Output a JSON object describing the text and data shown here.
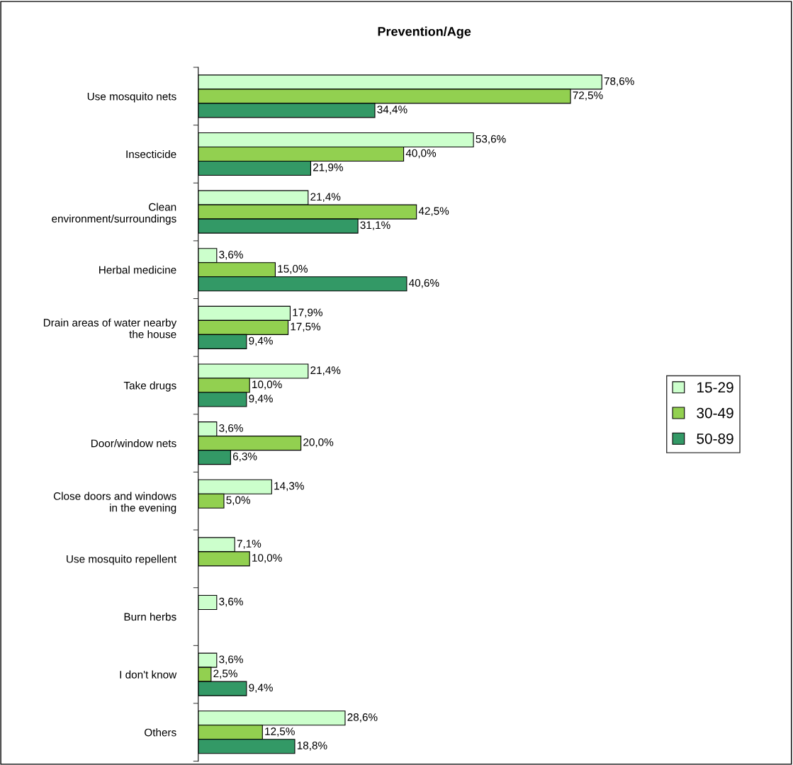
{
  "chart_data": {
    "type": "bar",
    "orientation": "horizontal",
    "title": "Prevention/Age",
    "categories": [
      "Use mosquito nets",
      "Insecticide",
      "Clean\nenvironment/surroundings",
      "Herbal medicine",
      "Drain areas of water nearby\nthe house",
      "Take drugs",
      "Door/window nets",
      "Close doors and windows\nin the evening",
      "Use mosquito repellent",
      "Burn herbs",
      "I don't know",
      "Others"
    ],
    "series": [
      {
        "name": "15-29",
        "color": "#ccffcc",
        "values": [
          78.6,
          53.6,
          21.4,
          3.6,
          17.9,
          21.4,
          3.6,
          14.3,
          7.1,
          3.6,
          3.6,
          28.6
        ],
        "value_labels": [
          "78,6%",
          "53,6%",
          "21,4%",
          "3,6%",
          "17,9%",
          "21,4%",
          "3,6%",
          "14,3%",
          "7,1%",
          "3,6%",
          "3,6%",
          "28,6%"
        ]
      },
      {
        "name": "30-49",
        "color": "#92d050",
        "values": [
          72.5,
          40.0,
          42.5,
          15.0,
          17.5,
          10.0,
          20.0,
          5.0,
          10.0,
          null,
          2.5,
          12.5
        ],
        "value_labels": [
          "72,5%",
          "40,0%",
          "42,5%",
          "15,0%",
          "17,5%",
          "10,0%",
          "20,0%",
          "5,0%",
          "10,0%",
          null,
          "2,5%",
          "12,5%"
        ]
      },
      {
        "name": "50-89",
        "color": "#339966",
        "values": [
          34.4,
          21.9,
          31.1,
          40.6,
          9.4,
          9.4,
          6.3,
          null,
          null,
          null,
          9.4,
          18.8
        ],
        "value_labels": [
          "34,4%",
          "21,9%",
          "31,1%",
          "40,6%",
          "9,4%",
          "9,4%",
          "6,3%",
          null,
          null,
          null,
          "9,4%",
          "18,8%"
        ]
      }
    ],
    "legend": "right",
    "grid": false
  }
}
